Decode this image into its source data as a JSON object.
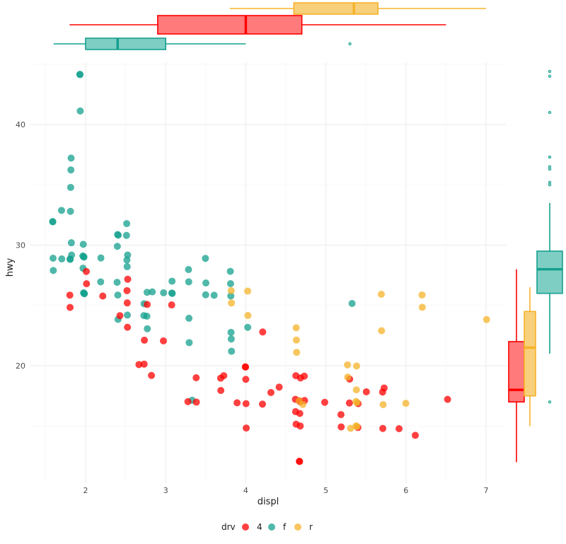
{
  "chart_data": {
    "type": "scatter",
    "title": "",
    "xlabel": "displ",
    "ylabel": "hwy",
    "xlim": [
      1.5,
      7.3
    ],
    "ylim": [
      10.5,
      45.5
    ],
    "xticks": [
      "2",
      "3",
      "4",
      "5",
      "6",
      "7"
    ],
    "yticks": [
      "20",
      "30",
      "40"
    ],
    "legend": {
      "title": "drv",
      "position": "bottom",
      "entries": [
        {
          "label": "4",
          "color": "#ff0000"
        },
        {
          "label": "f",
          "color": "#14a08e"
        },
        {
          "label": "r",
          "color": "#f5b32a"
        }
      ]
    },
    "series": [
      {
        "name": "f",
        "color": "#14a08e",
        "points": [
          [
            1.6,
            32
          ],
          [
            1.6,
            32
          ],
          [
            1.6,
            29
          ],
          [
            1.6,
            28
          ],
          [
            1.7,
            33
          ],
          [
            1.7,
            29
          ],
          [
            1.8,
            29
          ],
          [
            1.8,
            29
          ],
          [
            1.8,
            33
          ],
          [
            1.8,
            35
          ],
          [
            1.8,
            36
          ],
          [
            1.8,
            37
          ],
          [
            1.8,
            30
          ],
          [
            1.8,
            29
          ],
          [
            1.9,
            44
          ],
          [
            1.9,
            44
          ],
          [
            1.9,
            41
          ],
          [
            2.0,
            29
          ],
          [
            2.0,
            28
          ],
          [
            2.0,
            30
          ],
          [
            2.0,
            26
          ],
          [
            2.0,
            29
          ],
          [
            2.0,
            29
          ],
          [
            2.0,
            26
          ],
          [
            2.0,
            26
          ],
          [
            2.2,
            27
          ],
          [
            2.2,
            29
          ],
          [
            2.4,
            27
          ],
          [
            2.4,
            30
          ],
          [
            2.4,
            31
          ],
          [
            2.4,
            26
          ],
          [
            2.4,
            24
          ],
          [
            2.4,
            31
          ],
          [
            2.5,
            31
          ],
          [
            2.5,
            32
          ],
          [
            2.5,
            29
          ],
          [
            2.5,
            28
          ],
          [
            2.5,
            24
          ],
          [
            2.5,
            29
          ],
          [
            2.7,
            24
          ],
          [
            2.7,
            25
          ],
          [
            2.8,
            26
          ],
          [
            2.8,
            24
          ],
          [
            2.8,
            26
          ],
          [
            2.8,
            23
          ],
          [
            3.0,
            26
          ],
          [
            3.1,
            26
          ],
          [
            3.1,
            27
          ],
          [
            3.1,
            26
          ],
          [
            3.3,
            28
          ],
          [
            3.3,
            27
          ],
          [
            3.3,
            24
          ],
          [
            3.3,
            22
          ],
          [
            3.5,
            29
          ],
          [
            3.5,
            26
          ],
          [
            3.5,
            27
          ],
          [
            3.6,
            26
          ],
          [
            3.8,
            28
          ],
          [
            3.8,
            27
          ],
          [
            3.8,
            26
          ],
          [
            3.8,
            23
          ],
          [
            3.8,
            22
          ],
          [
            3.8,
            21
          ],
          [
            4.0,
            23
          ],
          [
            5.3,
            25
          ],
          [
            3.3,
            17
          ]
        ]
      },
      {
        "name": "4",
        "color": "#ff0000",
        "points": [
          [
            1.8,
            26
          ],
          [
            1.8,
            25
          ],
          [
            2.0,
            28
          ],
          [
            2.0,
            27
          ],
          [
            2.2,
            26
          ],
          [
            2.5,
            26
          ],
          [
            2.5,
            25
          ],
          [
            2.5,
            23
          ],
          [
            2.5,
            27
          ],
          [
            2.4,
            24
          ],
          [
            2.7,
            20
          ],
          [
            2.7,
            22
          ],
          [
            2.7,
            20
          ],
          [
            2.8,
            25
          ],
          [
            3.0,
            22
          ],
          [
            3.1,
            25
          ],
          [
            3.3,
            17
          ],
          [
            3.4,
            19
          ],
          [
            3.4,
            17
          ],
          [
            3.7,
            19
          ],
          [
            3.7,
            18
          ],
          [
            3.9,
            17
          ],
          [
            4.0,
            20
          ],
          [
            4.0,
            20
          ],
          [
            4.0,
            19
          ],
          [
            4.0,
            17
          ],
          [
            4.0,
            15
          ],
          [
            4.2,
            17
          ],
          [
            4.2,
            23
          ],
          [
            4.3,
            18
          ],
          [
            4.4,
            18
          ],
          [
            4.6,
            17
          ],
          [
            4.6,
            16
          ],
          [
            4.6,
            19
          ],
          [
            4.6,
            15
          ],
          [
            4.7,
            19
          ],
          [
            4.7,
            17
          ],
          [
            4.7,
            17
          ],
          [
            4.7,
            12
          ],
          [
            4.7,
            12
          ],
          [
            4.7,
            16
          ],
          [
            4.7,
            17
          ],
          [
            4.7,
            15
          ],
          [
            4.7,
            19
          ],
          [
            5.0,
            17
          ],
          [
            5.2,
            16
          ],
          [
            5.2,
            15
          ],
          [
            5.3,
            17
          ],
          [
            5.3,
            19
          ],
          [
            5.4,
            15
          ],
          [
            5.4,
            17
          ],
          [
            5.5,
            18
          ],
          [
            5.7,
            18
          ],
          [
            5.7,
            15
          ],
          [
            5.9,
            15
          ],
          [
            6.1,
            14
          ],
          [
            6.5,
            17
          ],
          [
            2.8,
            19
          ],
          [
            3.7,
            19
          ],
          [
            5.7,
            18
          ]
        ]
      },
      {
        "name": "r",
        "color": "#f5b32a",
        "points": [
          [
            3.8,
            26
          ],
          [
            3.8,
            25
          ],
          [
            4.0,
            26
          ],
          [
            4.0,
            24
          ],
          [
            4.6,
            23
          ],
          [
            4.6,
            22
          ],
          [
            4.6,
            21
          ],
          [
            4.7,
            17
          ],
          [
            5.3,
            20
          ],
          [
            5.3,
            19
          ],
          [
            5.4,
            17
          ],
          [
            5.4,
            15
          ],
          [
            5.4,
            18
          ],
          [
            5.4,
            20
          ],
          [
            5.4,
            15
          ],
          [
            5.4,
            17
          ],
          [
            5.7,
            26
          ],
          [
            5.7,
            23
          ],
          [
            6.0,
            17
          ],
          [
            6.2,
            26
          ],
          [
            6.2,
            25
          ],
          [
            7.0,
            24
          ],
          [
            5.3,
            15
          ],
          [
            4.7,
            17
          ],
          [
            5.7,
            17
          ]
        ]
      }
    ],
    "marginal_boxplots": {
      "displ": [
        {
          "group": "r",
          "color": "#f5b32a",
          "fill": "#f8cf7b",
          "whisker_low": 3.8,
          "q1": 4.6,
          "median": 5.35,
          "q3": 5.65,
          "whisker_high": 7.0,
          "outliers": []
        },
        {
          "group": "4",
          "color": "#ff0000",
          "fill": "#ff7a7a",
          "whisker_low": 1.8,
          "q1": 2.9,
          "median": 4.0,
          "q3": 4.7,
          "whisker_high": 6.5,
          "outliers": []
        },
        {
          "group": "f",
          "color": "#14a08e",
          "fill": "#7fcec4",
          "whisker_low": 1.6,
          "q1": 2.0,
          "median": 2.4,
          "q3": 3.0,
          "whisker_high": 4.0,
          "outliers": [
            5.3
          ]
        }
      ],
      "hwy": [
        {
          "group": "4",
          "color": "#ff0000",
          "fill": "#ff7a7a",
          "whisker_low": 12,
          "q1": 17,
          "median": 18,
          "q3": 22,
          "whisker_high": 28,
          "outliers": []
        },
        {
          "group": "r",
          "color": "#f5b32a",
          "fill": "#f8cf7b",
          "whisker_low": 15,
          "q1": 17.5,
          "median": 21.5,
          "q3": 24.5,
          "whisker_high": 26.5,
          "outliers": []
        },
        {
          "group": "f",
          "color": "#14a08e",
          "fill": "#7fcec4",
          "whisker_low": 21,
          "q1": 26,
          "median": 28,
          "q3": 29.5,
          "whisker_high": 33.5,
          "outliers": [
            17,
            35,
            35.2,
            36.3,
            36.5,
            37.3,
            41,
            44,
            44.4
          ]
        }
      ]
    }
  }
}
